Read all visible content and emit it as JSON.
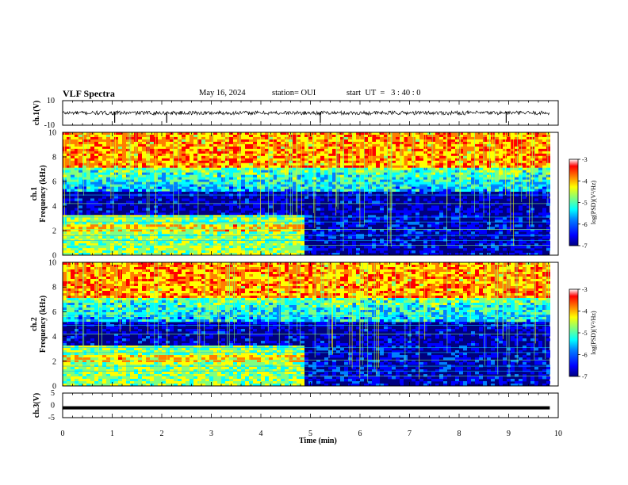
{
  "header": {
    "title": "VLF Spectra",
    "date": "May 16, 2024",
    "station": "station= OUI",
    "start": "start  UT  =   3 : 40 : 0"
  },
  "colors": {
    "background": "#ffffff",
    "colormap": [
      "#00007f",
      "#0000ff",
      "#007fff",
      "#00ffff",
      "#7fff7f",
      "#ffff00",
      "#ff7f00",
      "#ff0000",
      "#7f0000"
    ],
    "trace": "#000000"
  },
  "chart_data": [
    {
      "type": "line",
      "name": "ch1-waveform",
      "ylabel": "ch.1(V)",
      "ylim": [
        -10,
        10
      ],
      "yticks": [
        "10",
        "-10"
      ],
      "xlim": [
        0,
        10
      ],
      "baseline": 0,
      "spikes_min": [
        1.05,
        2.1,
        5.2,
        8.95
      ]
    },
    {
      "type": "heatmap",
      "name": "ch1-spectrogram",
      "ylabel": "ch.1\nFrequency (kHz)",
      "ylim": [
        0,
        10
      ],
      "yticks": [
        "0",
        "2",
        "4",
        "6",
        "8",
        "10"
      ],
      "xlim": [
        0,
        10
      ],
      "data_end_min": 9.83,
      "regime_change_min": 4.83,
      "colorbar": {
        "label": "log(PSD)(V²/Hz)",
        "range": [
          -7,
          -3
        ],
        "ticks": [
          "-3",
          "-4",
          "-5",
          "-6",
          "-7"
        ]
      }
    },
    {
      "type": "heatmap",
      "name": "ch2-spectrogram",
      "ylabel": "ch.2\nFrequency (kHz)",
      "ylim": [
        0,
        10
      ],
      "yticks": [
        "0",
        "2",
        "4",
        "6",
        "8",
        "10"
      ],
      "xlim": [
        0,
        10
      ],
      "data_end_min": 9.83,
      "regime_change_min": 4.83,
      "colorbar": {
        "label": "log(PSD)(V²/Hz)",
        "range": [
          -7,
          -3
        ],
        "ticks": [
          "-3",
          "-4",
          "-5",
          "-6",
          "-7"
        ]
      }
    },
    {
      "type": "line",
      "name": "ch3-waveform",
      "ylabel": "ch.3(V)",
      "ylim": [
        -5,
        5
      ],
      "yticks": [
        "5",
        "0",
        "-5"
      ],
      "xlim": [
        0,
        10
      ],
      "level": -1
    }
  ],
  "xaxis": {
    "label": "Time (min)",
    "ticks": [
      "0",
      "1",
      "2",
      "3",
      "4",
      "5",
      "6",
      "7",
      "8",
      "9",
      "10"
    ]
  }
}
